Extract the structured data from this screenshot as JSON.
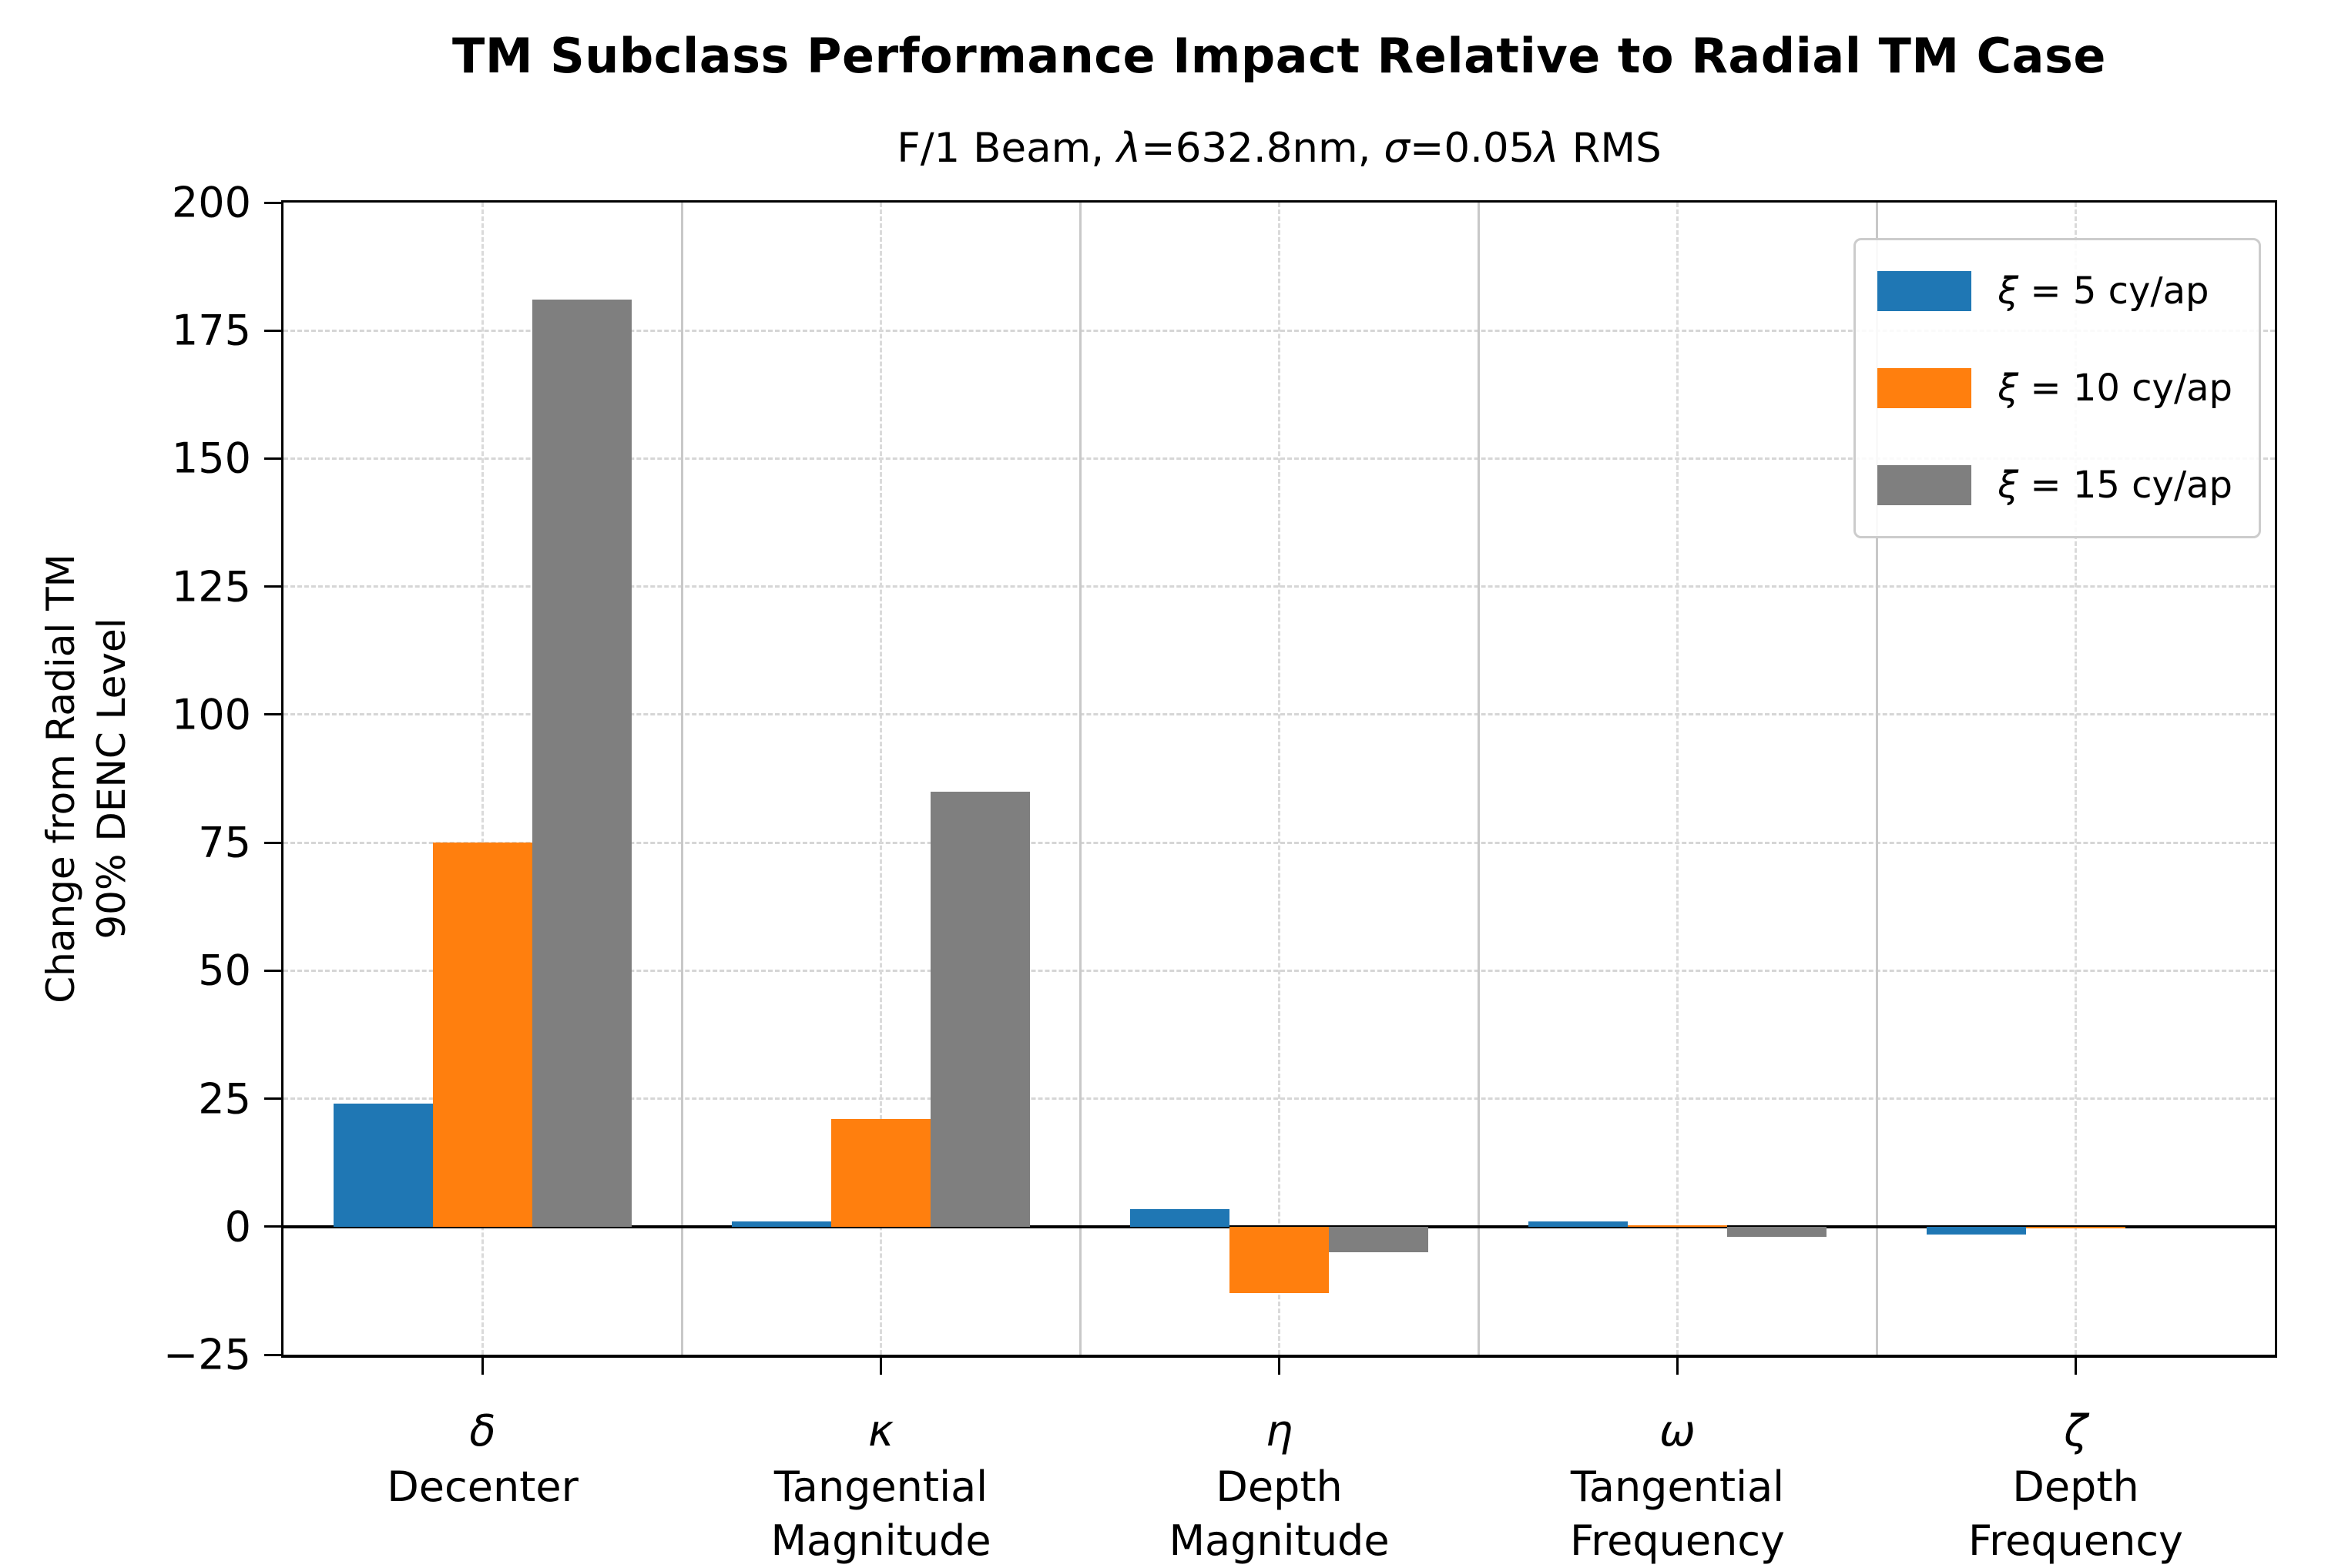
{
  "page": {
    "background": "#ffffff"
  },
  "chart_data": {
    "type": "bar",
    "title": "TM Subclass Performance Impact Relative to Radial TM Case",
    "subtitle": "F/1 Beam, λ=632.8nm, σ=0.05λ RMS",
    "subtitle_parts": [
      {
        "text": "F/1 Beam, ",
        "italic": false
      },
      {
        "text": "λ",
        "italic": true
      },
      {
        "text": "=632.8nm, ",
        "italic": false
      },
      {
        "text": "σ",
        "italic": true
      },
      {
        "text": "=0.05",
        "italic": false
      },
      {
        "text": "λ",
        "italic": true
      },
      {
        "text": " RMS",
        "italic": false
      }
    ],
    "ylabel_lines": [
      "Change from Radial TM",
      "90% DENC Level"
    ],
    "ylim": [
      -25,
      200
    ],
    "yticks": [
      200,
      175,
      150,
      125,
      100,
      75,
      50,
      25,
      0,
      -25
    ],
    "ytick_labels": [
      "200",
      "175",
      "150",
      "125",
      "100",
      "75",
      "50",
      "25",
      "0",
      "−25"
    ],
    "categories": [
      {
        "symbol": "δ",
        "name_lines": [
          "Decenter"
        ]
      },
      {
        "symbol": "κ",
        "name_lines": [
          "Tangential",
          "Magnitude"
        ]
      },
      {
        "symbol": "η",
        "name_lines": [
          "Depth",
          "Magnitude"
        ]
      },
      {
        "symbol": "ω",
        "name_lines": [
          "Tangential",
          "Frequency"
        ]
      },
      {
        "symbol": "ζ",
        "name_lines": [
          "Depth",
          "Frequency"
        ]
      }
    ],
    "series": [
      {
        "name": "ξ = 5 cy/ap",
        "legend_symbol": "ξ",
        "legend_rest": " = 5 cy/ap",
        "color": "#1f77b4",
        "values": [
          24,
          1,
          3.5,
          1,
          -1.5
        ]
      },
      {
        "name": "ξ = 10 cy/ap",
        "legend_symbol": "ξ",
        "legend_rest": " = 10 cy/ap",
        "color": "#ff7f0e",
        "values": [
          75,
          21,
          -13,
          0.2,
          -0.3
        ]
      },
      {
        "name": "ξ = 15 cy/ap",
        "legend_symbol": "ξ",
        "legend_rest": " = 15 cy/ap",
        "color": "#7f7f7f",
        "values": [
          181,
          85,
          -5,
          -2,
          0
        ]
      }
    ],
    "bar_width_fraction": 0.25,
    "legend_position": "upper right",
    "grid": {
      "y_gridlines": "dashed at each y tick",
      "x_gridlines": "dashed at each category center",
      "category_separators": "solid between categories"
    },
    "colors": {
      "spine": "#000000",
      "zero_line": "#000000",
      "dashed_grid": "#d6d6d6",
      "separator": "#c8c8c8",
      "text": "#000000",
      "legend_border": "#cccccc"
    }
  }
}
